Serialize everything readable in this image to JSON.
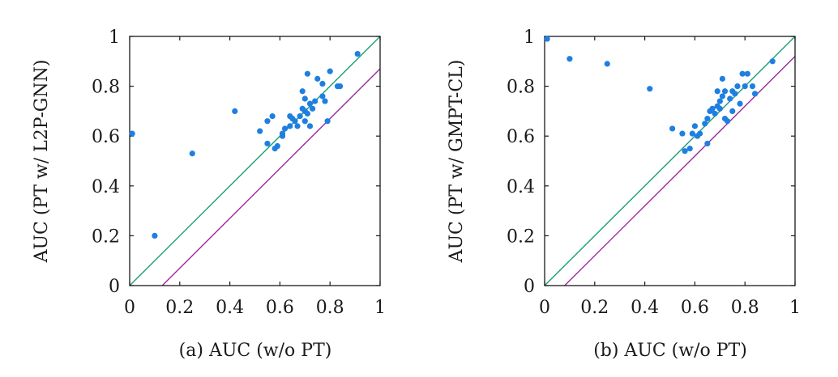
{
  "chart_data": [
    {
      "type": "scatter",
      "id": "a",
      "caption": "(a) AUC (w/o PT)",
      "xlabel": "",
      "ylabel": "AUC (PT w/ L2P-GNN)",
      "xlim": [
        0,
        1
      ],
      "ylim": [
        0,
        1
      ],
      "x_ticks": [
        "0",
        "0.2",
        "0.4",
        "0.6",
        "0.8",
        "1"
      ],
      "y_ticks": [
        "0",
        "0.2",
        "0.4",
        "0.6",
        "0.8",
        "1"
      ],
      "reference_lines": [
        {
          "name": "y = x",
          "color": "#1a9e77",
          "slope": 1,
          "intercept": 0
        },
        {
          "name": "y = x - 0.13",
          "color": "#9b2a9b",
          "slope": 1,
          "intercept": -0.13
        }
      ],
      "point_color": "#1f7fe0",
      "points": [
        [
          0.01,
          0.61
        ],
        [
          0.1,
          0.2
        ],
        [
          0.25,
          0.53
        ],
        [
          0.42,
          0.7
        ],
        [
          0.52,
          0.62
        ],
        [
          0.55,
          0.57
        ],
        [
          0.55,
          0.66
        ],
        [
          0.57,
          0.68
        ],
        [
          0.58,
          0.55
        ],
        [
          0.59,
          0.56
        ],
        [
          0.61,
          0.6
        ],
        [
          0.61,
          0.61
        ],
        [
          0.62,
          0.63
        ],
        [
          0.64,
          0.64
        ],
        [
          0.64,
          0.68
        ],
        [
          0.65,
          0.67
        ],
        [
          0.66,
          0.66
        ],
        [
          0.67,
          0.64
        ],
        [
          0.68,
          0.68
        ],
        [
          0.69,
          0.71
        ],
        [
          0.69,
          0.78
        ],
        [
          0.7,
          0.7
        ],
        [
          0.7,
          0.75
        ],
        [
          0.7,
          0.66
        ],
        [
          0.71,
          0.85
        ],
        [
          0.71,
          0.69
        ],
        [
          0.72,
          0.64
        ],
        [
          0.72,
          0.73
        ],
        [
          0.73,
          0.71
        ],
        [
          0.74,
          0.74
        ],
        [
          0.75,
          0.83
        ],
        [
          0.77,
          0.81
        ],
        [
          0.77,
          0.76
        ],
        [
          0.78,
          0.74
        ],
        [
          0.79,
          0.66
        ],
        [
          0.8,
          0.86
        ],
        [
          0.83,
          0.8
        ],
        [
          0.84,
          0.8
        ],
        [
          0.91,
          0.93
        ]
      ]
    },
    {
      "type": "scatter",
      "id": "b",
      "caption": "(b) AUC (w/o PT)",
      "xlabel": "",
      "ylabel": "AUC (PT w/ GMPT-CL)",
      "xlim": [
        0,
        1
      ],
      "ylim": [
        0,
        1
      ],
      "x_ticks": [
        "0",
        "0.2",
        "0.4",
        "0.6",
        "0.8",
        "1"
      ],
      "y_ticks": [
        "0",
        "0.2",
        "0.4",
        "0.6",
        "0.8",
        "1"
      ],
      "reference_lines": [
        {
          "name": "y = x",
          "color": "#1a9e77",
          "slope": 1,
          "intercept": 0
        },
        {
          "name": "y = x - 0.08",
          "color": "#9b2a9b",
          "slope": 1,
          "intercept": -0.08
        }
      ],
      "point_color": "#1f7fe0",
      "points": [
        [
          0.01,
          0.99
        ],
        [
          0.1,
          0.91
        ],
        [
          0.25,
          0.89
        ],
        [
          0.42,
          0.79
        ],
        [
          0.51,
          0.63
        ],
        [
          0.55,
          0.61
        ],
        [
          0.56,
          0.54
        ],
        [
          0.58,
          0.55
        ],
        [
          0.59,
          0.61
        ],
        [
          0.6,
          0.64
        ],
        [
          0.61,
          0.6
        ],
        [
          0.62,
          0.61
        ],
        [
          0.64,
          0.65
        ],
        [
          0.65,
          0.57
        ],
        [
          0.65,
          0.67
        ],
        [
          0.66,
          0.7
        ],
        [
          0.67,
          0.71
        ],
        [
          0.68,
          0.69
        ],
        [
          0.69,
          0.72
        ],
        [
          0.7,
          0.71
        ],
        [
          0.7,
          0.74
        ],
        [
          0.71,
          0.76
        ],
        [
          0.71,
          0.83
        ],
        [
          0.72,
          0.67
        ],
        [
          0.72,
          0.78
        ],
        [
          0.73,
          0.66
        ],
        [
          0.74,
          0.75
        ],
        [
          0.75,
          0.7
        ],
        [
          0.75,
          0.78
        ],
        [
          0.76,
          0.77
        ],
        [
          0.77,
          0.8
        ],
        [
          0.78,
          0.73
        ],
        [
          0.79,
          0.85
        ],
        [
          0.8,
          0.8
        ],
        [
          0.81,
          0.85
        ],
        [
          0.83,
          0.8
        ],
        [
          0.84,
          0.77
        ],
        [
          0.91,
          0.9
        ],
        [
          0.69,
          0.78
        ]
      ]
    }
  ]
}
